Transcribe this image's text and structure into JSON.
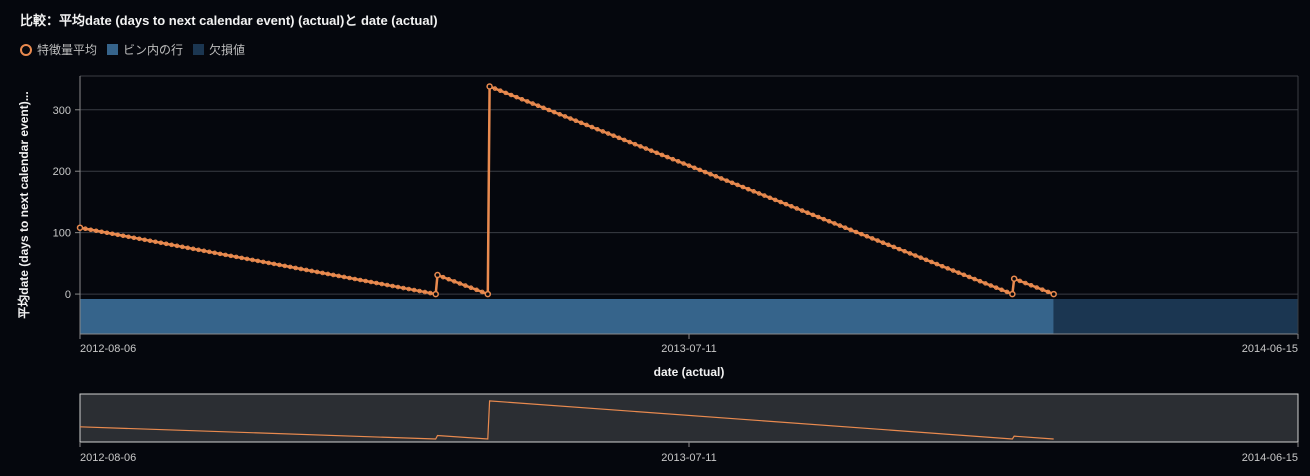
{
  "title": "比較：平均date (days to next calendar event) (actual)と date (actual)",
  "legend": [
    {
      "label": "特徴量平均",
      "shape": "circle",
      "color": "#e98a4f"
    },
    {
      "label": "ビン内の行",
      "shape": "rect",
      "color": "#36648b"
    },
    {
      "label": "欠損値",
      "shape": "rect",
      "color": "#1b3651"
    }
  ],
  "colors": {
    "line": "#e98a4f",
    "rows_bar": "#36648b",
    "missing_bar": "#1b3651",
    "grid": "#3a3d44",
    "nav_bg": "#2b2e33"
  },
  "chart_data": {
    "type": "line",
    "title": "比較：平均date (days to next calendar event) (actual)と date (actual)",
    "xlabel": "date (actual)",
    "ylabel": "平均date (days to next calendar event)...",
    "x_ticks": [
      "2012-08-06",
      "2013-07-11",
      "2014-06-15"
    ],
    "y_ticks": [
      0,
      100,
      200,
      300
    ],
    "xlim": [
      "2012-08-06",
      "2014-06-15"
    ],
    "ylim": [
      -65,
      355
    ],
    "grid": true,
    "legend_position": "top-left",
    "series": [
      {
        "name": "特徴量平均",
        "segments": [
          {
            "start": {
              "x": "2012-08-06",
              "y": 108
            },
            "end": {
              "x": "2013-02-20",
              "y": 0
            }
          },
          {
            "start": {
              "x": "2013-02-21",
              "y": 31
            },
            "end": {
              "x": "2013-03-21",
              "y": 0
            }
          },
          {
            "start": {
              "x": "2013-03-22",
              "y": 338
            },
            "end": {
              "x": "2014-01-07",
              "y": 0
            }
          },
          {
            "start": {
              "x": "2014-01-08",
              "y": 25
            },
            "end": {
              "x": "2014-01-30",
              "y": 0
            }
          }
        ]
      }
    ],
    "bins": [
      {
        "name": "ビン内の行",
        "start": "2012-08-06",
        "end": "2014-01-30"
      },
      {
        "name": "欠損値",
        "start": "2014-01-30",
        "end": "2014-06-15"
      }
    ],
    "navigator": {
      "x_ticks": [
        "2012-08-06",
        "2013-07-11",
        "2014-06-15"
      ]
    }
  }
}
